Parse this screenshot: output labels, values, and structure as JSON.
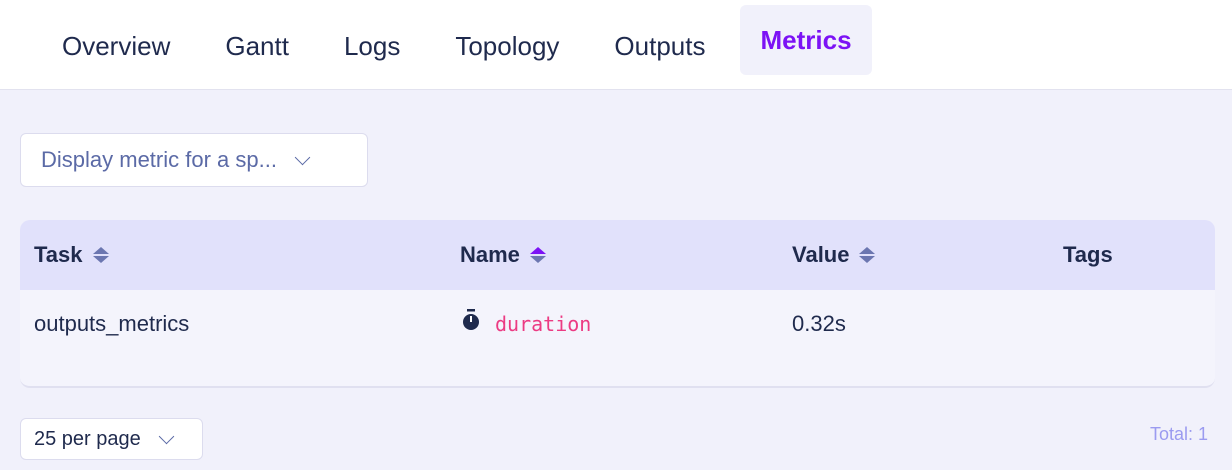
{
  "tabs": [
    {
      "label": "Overview"
    },
    {
      "label": "Gantt"
    },
    {
      "label": "Logs"
    },
    {
      "label": "Topology"
    },
    {
      "label": "Outputs"
    },
    {
      "label": "Metrics",
      "active": true
    }
  ],
  "metric_select": {
    "value": "Display metric for a sp..."
  },
  "table": {
    "columns": [
      {
        "label": "Task",
        "sortable": true
      },
      {
        "label": "Name",
        "sortable": true,
        "sorted": "asc"
      },
      {
        "label": "Value",
        "sortable": true
      },
      {
        "label": "Tags",
        "sortable": false
      }
    ],
    "rows": [
      {
        "task": "outputs_metrics",
        "icon": "stopwatch-icon",
        "name": "duration",
        "value": "0.32s",
        "tags": ""
      }
    ]
  },
  "pagination": {
    "per_page": "25 per page",
    "total": "Total: 1"
  },
  "colors": {
    "accent": "#7c12f5",
    "metric_name": "#ec3b83",
    "header_bg": "#e1e1fb"
  }
}
